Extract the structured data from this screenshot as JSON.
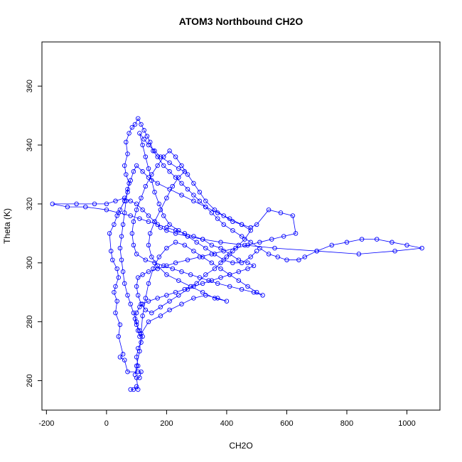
{
  "chart_data": {
    "type": "line",
    "title": "ATOM3 Northbound CH2O",
    "xlabel": "CH2O",
    "ylabel": "Theta (K)",
    "xlim": [
      -215,
      1110
    ],
    "ylim": [
      250,
      375
    ],
    "x_ticks": [
      -200,
      0,
      200,
      400,
      600,
      800,
      1000
    ],
    "y_ticks": [
      260,
      280,
      300,
      320,
      340,
      360
    ],
    "x_tick_labels": [
      "-200",
      "0",
      "200",
      "400",
      "600",
      "800",
      "1000"
    ],
    "y_tick_labels": [
      "260",
      "280",
      "300",
      "320",
      "340",
      "360"
    ],
    "grid": false,
    "legend": "none",
    "series": [
      {
        "color": "#0000ff",
        "marker": "open-circle",
        "line": true,
        "points": [
          [
            80,
            257
          ],
          [
            90,
            257
          ],
          [
            100,
            258
          ],
          [
            105,
            257
          ],
          [
            100,
            261
          ],
          [
            110,
            261
          ],
          [
            115,
            263
          ],
          [
            105,
            263
          ],
          [
            70,
            263
          ],
          [
            60,
            267
          ],
          [
            45,
            268
          ],
          [
            55,
            269
          ],
          [
            40,
            275
          ],
          [
            45,
            279
          ],
          [
            30,
            283
          ],
          [
            35,
            287
          ],
          [
            25,
            290
          ],
          [
            30,
            292
          ],
          [
            40,
            295
          ],
          [
            35,
            298
          ],
          [
            20,
            301
          ],
          [
            15,
            304
          ],
          [
            10,
            310
          ],
          [
            25,
            313
          ],
          [
            35,
            316
          ],
          [
            45,
            318
          ],
          [
            60,
            321
          ],
          [
            70,
            324
          ],
          [
            75,
            327
          ],
          [
            65,
            330
          ],
          [
            60,
            333
          ],
          [
            70,
            337
          ],
          [
            65,
            341
          ],
          [
            75,
            344
          ],
          [
            85,
            346
          ],
          [
            95,
            347
          ],
          [
            105,
            349
          ],
          [
            115,
            347
          ],
          [
            125,
            345
          ],
          [
            135,
            343
          ],
          [
            145,
            341
          ],
          [
            155,
            338
          ],
          [
            170,
            336
          ],
          [
            190,
            333
          ],
          [
            210,
            331
          ],
          [
            230,
            329
          ],
          [
            250,
            327
          ],
          [
            270,
            325
          ],
          [
            290,
            323
          ],
          [
            310,
            321
          ],
          [
            330,
            319
          ],
          [
            350,
            317
          ],
          [
            370,
            315
          ],
          [
            390,
            313
          ],
          [
            420,
            311
          ],
          [
            450,
            309
          ],
          [
            480,
            307
          ],
          [
            510,
            305
          ],
          [
            540,
            303
          ],
          [
            570,
            302
          ],
          [
            600,
            301
          ],
          [
            640,
            301
          ],
          [
            660,
            302
          ],
          [
            700,
            304
          ],
          [
            750,
            306
          ],
          [
            800,
            307
          ],
          [
            850,
            308
          ],
          [
            900,
            308
          ],
          [
            950,
            307
          ],
          [
            1000,
            306
          ],
          [
            1050,
            305
          ],
          [
            960,
            304
          ],
          [
            840,
            303
          ],
          [
            700,
            304
          ],
          [
            560,
            305
          ],
          [
            460,
            306
          ],
          [
            380,
            307
          ],
          [
            320,
            308
          ],
          [
            270,
            309
          ],
          [
            230,
            310
          ],
          [
            200,
            311
          ],
          [
            180,
            312
          ],
          [
            160,
            314
          ],
          [
            140,
            316
          ],
          [
            120,
            318
          ],
          [
            100,
            320
          ],
          [
            80,
            321
          ],
          [
            60,
            322
          ],
          [
            30,
            321
          ],
          [
            0,
            320
          ],
          [
            -40,
            320
          ],
          [
            -100,
            320
          ],
          [
            -180,
            320
          ],
          [
            -130,
            319
          ],
          [
            -70,
            319
          ],
          [
            0,
            318
          ],
          [
            40,
            317
          ],
          [
            80,
            316
          ],
          [
            110,
            315
          ],
          [
            140,
            314
          ],
          [
            170,
            313
          ],
          [
            200,
            312
          ],
          [
            230,
            311
          ],
          [
            260,
            310
          ],
          [
            290,
            309
          ],
          [
            320,
            308
          ],
          [
            350,
            306
          ],
          [
            380,
            305
          ],
          [
            410,
            303
          ],
          [
            440,
            301
          ],
          [
            470,
            300
          ],
          [
            490,
            299
          ],
          [
            470,
            298
          ],
          [
            440,
            297
          ],
          [
            410,
            296
          ],
          [
            380,
            295
          ],
          [
            350,
            294
          ],
          [
            320,
            293
          ],
          [
            290,
            292
          ],
          [
            260,
            291
          ],
          [
            230,
            290
          ],
          [
            200,
            289
          ],
          [
            170,
            288
          ],
          [
            140,
            287
          ],
          [
            120,
            286
          ],
          [
            110,
            285
          ],
          [
            100,
            283
          ],
          [
            95,
            281
          ],
          [
            100,
            279
          ],
          [
            110,
            277
          ],
          [
            120,
            275
          ],
          [
            115,
            273
          ],
          [
            105,
            271
          ],
          [
            100,
            268
          ],
          [
            105,
            265
          ],
          [
            95,
            262
          ],
          [
            100,
            265
          ],
          [
            110,
            270
          ],
          [
            115,
            276
          ],
          [
            120,
            282
          ],
          [
            130,
            288
          ],
          [
            140,
            293
          ],
          [
            155,
            298
          ],
          [
            175,
            302
          ],
          [
            200,
            305
          ],
          [
            230,
            307
          ],
          [
            260,
            306
          ],
          [
            290,
            304
          ],
          [
            320,
            302
          ],
          [
            350,
            300
          ],
          [
            380,
            298
          ],
          [
            410,
            296
          ],
          [
            440,
            294
          ],
          [
            470,
            292
          ],
          [
            500,
            290
          ],
          [
            520,
            289
          ],
          [
            490,
            290
          ],
          [
            450,
            291
          ],
          [
            410,
            292
          ],
          [
            370,
            293
          ],
          [
            340,
            294
          ],
          [
            310,
            295
          ],
          [
            280,
            296
          ],
          [
            250,
            297
          ],
          [
            220,
            298
          ],
          [
            190,
            299
          ],
          [
            160,
            300
          ],
          [
            130,
            301
          ],
          [
            100,
            303
          ],
          [
            90,
            306
          ],
          [
            85,
            310
          ],
          [
            90,
            314
          ],
          [
            100,
            318
          ],
          [
            115,
            322
          ],
          [
            130,
            326
          ],
          [
            150,
            330
          ],
          [
            170,
            333
          ],
          [
            190,
            336
          ],
          [
            210,
            338
          ],
          [
            230,
            336
          ],
          [
            250,
            333
          ],
          [
            270,
            330
          ],
          [
            290,
            327
          ],
          [
            310,
            324
          ],
          [
            330,
            321
          ],
          [
            360,
            318
          ],
          [
            390,
            316
          ],
          [
            420,
            314
          ],
          [
            450,
            313
          ],
          [
            480,
            312
          ],
          [
            500,
            313
          ],
          [
            540,
            318
          ],
          [
            580,
            317
          ],
          [
            620,
            316
          ],
          [
            630,
            310
          ],
          [
            590,
            309
          ],
          [
            550,
            308
          ],
          [
            510,
            307
          ],
          [
            470,
            306
          ],
          [
            430,
            305
          ],
          [
            390,
            304
          ],
          [
            350,
            303
          ],
          [
            310,
            302
          ],
          [
            270,
            301
          ],
          [
            230,
            300
          ],
          [
            200,
            299
          ],
          [
            170,
            298
          ],
          [
            140,
            297
          ],
          [
            120,
            296
          ],
          [
            105,
            295
          ],
          [
            100,
            292
          ],
          [
            105,
            289
          ],
          [
            115,
            286
          ],
          [
            130,
            284
          ],
          [
            150,
            283
          ],
          [
            180,
            285
          ],
          [
            210,
            287
          ],
          [
            240,
            289
          ],
          [
            270,
            291
          ],
          [
            300,
            293
          ],
          [
            330,
            296
          ],
          [
            360,
            298
          ],
          [
            380,
            300
          ],
          [
            400,
            302
          ],
          [
            420,
            304
          ],
          [
            440,
            306
          ],
          [
            460,
            308
          ],
          [
            480,
            311
          ],
          [
            450,
            313
          ],
          [
            410,
            315
          ],
          [
            370,
            317
          ],
          [
            330,
            319
          ],
          [
            290,
            321
          ],
          [
            250,
            323
          ],
          [
            210,
            325
          ],
          [
            170,
            327
          ],
          [
            140,
            329
          ],
          [
            120,
            331
          ],
          [
            100,
            333
          ],
          [
            90,
            331
          ],
          [
            80,
            328
          ],
          [
            70,
            325
          ],
          [
            65,
            321
          ],
          [
            60,
            317
          ],
          [
            55,
            313
          ],
          [
            50,
            309
          ],
          [
            45,
            305
          ],
          [
            50,
            301
          ],
          [
            55,
            297
          ],
          [
            60,
            293
          ],
          [
            70,
            289
          ],
          [
            80,
            286
          ],
          [
            90,
            283
          ],
          [
            100,
            280
          ],
          [
            105,
            277
          ],
          [
            110,
            275
          ],
          [
            140,
            280
          ],
          [
            180,
            282
          ],
          [
            210,
            284
          ],
          [
            250,
            286
          ],
          [
            290,
            288
          ],
          [
            330,
            289
          ],
          [
            370,
            288
          ],
          [
            400,
            287
          ],
          [
            360,
            288
          ],
          [
            320,
            290
          ],
          [
            280,
            292
          ],
          [
            240,
            294
          ],
          [
            200,
            296
          ],
          [
            170,
            299
          ],
          [
            150,
            302
          ],
          [
            140,
            306
          ],
          [
            145,
            310
          ],
          [
            160,
            314
          ],
          [
            180,
            318
          ],
          [
            200,
            322
          ],
          [
            220,
            326
          ],
          [
            240,
            329
          ],
          [
            260,
            331
          ],
          [
            240,
            332
          ],
          [
            210,
            334
          ],
          [
            180,
            336
          ],
          [
            160,
            338
          ],
          [
            140,
            340
          ],
          [
            125,
            342
          ],
          [
            110,
            344
          ],
          [
            120,
            340
          ],
          [
            130,
            336
          ],
          [
            140,
            332
          ],
          [
            150,
            328
          ],
          [
            160,
            324
          ],
          [
            175,
            320
          ],
          [
            190,
            316
          ],
          [
            210,
            313
          ],
          [
            240,
            311
          ],
          [
            270,
            309
          ],
          [
            300,
            307
          ],
          [
            330,
            305
          ],
          [
            360,
            303
          ],
          [
            390,
            301
          ],
          [
            420,
            300
          ],
          [
            450,
            300
          ],
          [
            480,
            302
          ],
          [
            500,
            304
          ]
        ]
      }
    ]
  }
}
